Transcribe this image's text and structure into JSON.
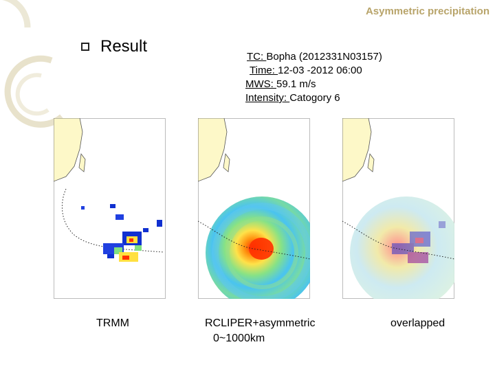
{
  "header": {
    "title": "Asymmetric precipitation"
  },
  "section": {
    "bullet_label": "Result"
  },
  "tc_info": {
    "tc_label": "TC: ",
    "tc_value": "Bopha (2012331N03157)",
    "time_label": "Time: ",
    "time_value": "12-03 -2012   06:00",
    "mws_label": "MWS: ",
    "mws_value": "59.1 m/s",
    "intensity_label": "Intensity: ",
    "intensity_value": "Catogory 6"
  },
  "panels": [
    {
      "caption": "TRMM"
    },
    {
      "caption_line1": "RCLIPER+asymmetric",
      "caption_line2": "0~1000km"
    },
    {
      "caption": "overlapped"
    }
  ],
  "colors": {
    "accent": "#b8a46a",
    "land": "#fdf8c8",
    "deco": "#e9e4cf"
  }
}
